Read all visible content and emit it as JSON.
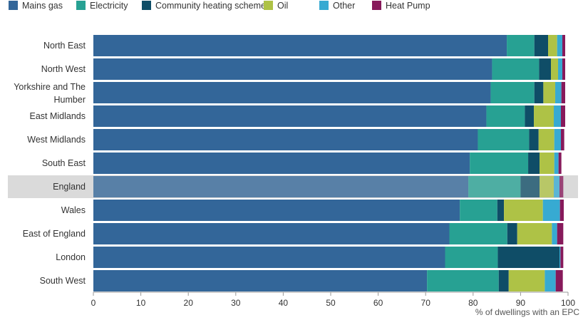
{
  "chart_data": {
    "type": "bar",
    "orientation": "horizontal",
    "stacked": true,
    "categories": [
      "North East",
      "North West",
      "Yorkshire and The Humber",
      "East Midlands",
      "West Midlands",
      "South East",
      "England",
      "Wales",
      "East of England",
      "London",
      "South West"
    ],
    "highlighted_category": "England",
    "series": [
      {
        "name": "Mains gas",
        "color": "#336699",
        "values": [
          87.1,
          84.0,
          83.7,
          82.8,
          81.0,
          79.3,
          79.0,
          77.2,
          75.0,
          74.1,
          70.3
        ]
      },
      {
        "name": "Electricity",
        "color": "#27A193",
        "values": [
          5.8,
          9.9,
          9.2,
          8.1,
          10.8,
          12.3,
          11.0,
          7.9,
          12.2,
          11.1,
          15.1
        ]
      },
      {
        "name": "Community heating scheme",
        "color": "#0F4D67",
        "values": [
          2.9,
          2.5,
          1.9,
          1.9,
          2.0,
          2.4,
          4.0,
          1.4,
          2.1,
          13.0,
          2.1
        ]
      },
      {
        "name": "Oil",
        "color": "#AEC246",
        "values": [
          1.9,
          1.5,
          2.5,
          4.2,
          3.3,
          3.1,
          3.0,
          8.2,
          7.3,
          0.0,
          7.6
        ]
      },
      {
        "name": "Other",
        "color": "#37AAD2",
        "values": [
          1.1,
          0.9,
          1.3,
          1.5,
          1.4,
          0.9,
          1.2,
          3.6,
          1.1,
          0.2,
          2.3
        ]
      },
      {
        "name": "Heat Pump",
        "color": "#871A5B",
        "values": [
          0.6,
          0.6,
          0.8,
          0.9,
          0.7,
          0.6,
          0.8,
          0.8,
          1.3,
          0.6,
          1.5
        ]
      }
    ],
    "xlim": [
      0,
      100
    ],
    "xticks": [
      0,
      10,
      20,
      30,
      40,
      50,
      60,
      70,
      80,
      90,
      100
    ],
    "xlabel": "% of dwellings with an EPC",
    "ylabel": "",
    "title": "",
    "legend": "top-left",
    "grid": false
  }
}
